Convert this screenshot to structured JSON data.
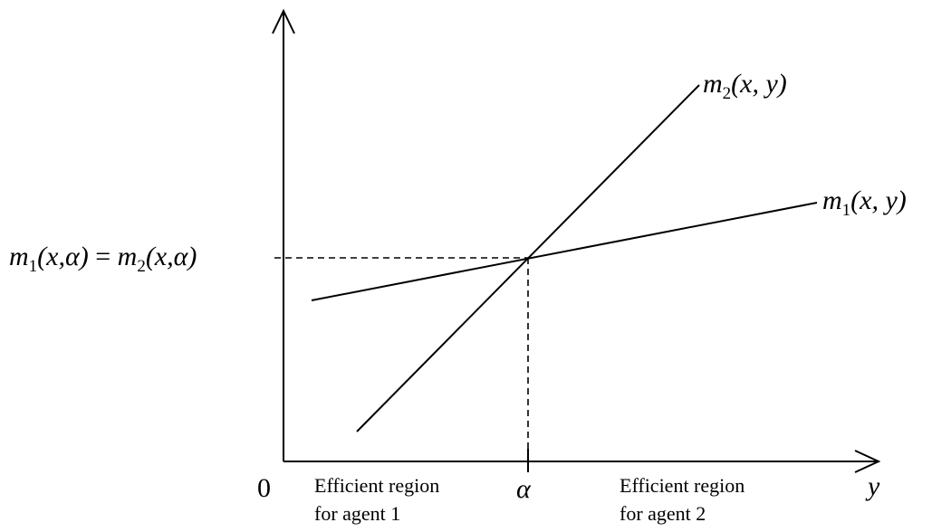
{
  "curves": {
    "m2": {
      "base": "m",
      "sub": "2",
      "args": "(x, y)"
    },
    "m1": {
      "base": "m",
      "sub": "1",
      "args": "(x, y)"
    }
  },
  "intersection_label": {
    "left_base": "m",
    "left_sub": "1",
    "left_args": "(x,α)",
    "equals": " = ",
    "right_base": "m",
    "right_sub": "2",
    "right_args": "(x,α)"
  },
  "axes": {
    "origin_label": "0",
    "x_label": "y",
    "alpha_label": "α"
  },
  "regions": {
    "agent1": {
      "line1": "Efficient region",
      "line2": "for agent 1"
    },
    "agent2": {
      "line1": "Efficient region",
      "line2": "for agent 2"
    }
  }
}
